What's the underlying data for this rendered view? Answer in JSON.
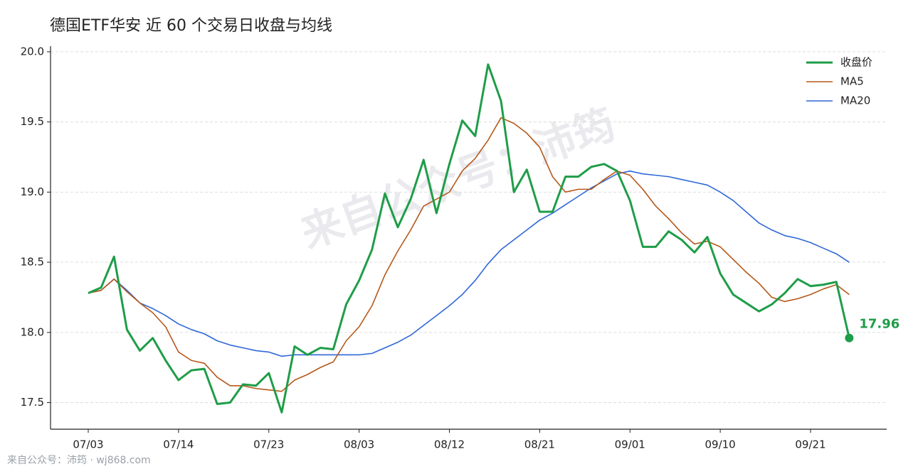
{
  "chart_data": {
    "type": "line",
    "title": "德国ETF华安 近 60 个交易日收盘与均线",
    "watermark": "来自公众号：沛筠",
    "footer": "来自公众号：沛筠 · wj868.com",
    "categories": [
      "07/03",
      null,
      null,
      null,
      null,
      null,
      null,
      "07/14",
      null,
      null,
      null,
      null,
      null,
      null,
      "07/23",
      null,
      null,
      null,
      null,
      null,
      null,
      "08/03",
      null,
      null,
      null,
      null,
      null,
      null,
      "08/12",
      null,
      null,
      null,
      null,
      null,
      null,
      "08/21",
      null,
      null,
      null,
      null,
      null,
      null,
      "09/01",
      null,
      null,
      null,
      null,
      null,
      null,
      "09/10",
      null,
      null,
      null,
      null,
      null,
      null,
      "09/21",
      null,
      null,
      null
    ],
    "series": [
      {
        "name": "收盘价",
        "color": "#1f9d48",
        "width": 3,
        "values": [
          18.28,
          18.32,
          18.54,
          18.02,
          17.87,
          17.96,
          17.8,
          17.66,
          17.73,
          17.74,
          17.49,
          17.5,
          17.63,
          17.62,
          17.71,
          17.43,
          17.9,
          17.84,
          17.89,
          17.88,
          18.2,
          18.37,
          18.59,
          18.99,
          18.75,
          18.95,
          19.23,
          18.85,
          19.2,
          19.51,
          19.4,
          19.91,
          19.65,
          19.0,
          19.16,
          18.86,
          18.86,
          19.11,
          19.11,
          19.18,
          19.2,
          19.15,
          18.94,
          18.61,
          18.61,
          18.72,
          18.66,
          18.57,
          18.68,
          18.42,
          18.27,
          18.21,
          18.15,
          18.2,
          18.28,
          18.38,
          18.33,
          18.34,
          18.36,
          17.96
        ]
      },
      {
        "name": "MA5",
        "color": "#b5581a",
        "width": 1.6,
        "values": [
          18.28,
          18.3,
          18.38,
          18.29,
          18.21,
          18.14,
          18.04,
          17.86,
          17.8,
          17.78,
          17.68,
          17.62,
          17.62,
          17.6,
          17.59,
          17.58,
          17.66,
          17.7,
          17.75,
          17.79,
          17.94,
          18.04,
          18.19,
          18.41,
          18.58,
          18.73,
          18.9,
          18.95,
          19.0,
          19.15,
          19.24,
          19.37,
          19.53,
          19.49,
          19.42,
          19.32,
          19.11,
          19.0,
          19.02,
          19.02,
          19.09,
          19.15,
          19.12,
          19.02,
          18.9,
          18.81,
          18.71,
          18.63,
          18.65,
          18.61,
          18.52,
          18.43,
          18.35,
          18.25,
          18.22,
          18.24,
          18.27,
          18.31,
          18.34,
          18.27
        ]
      },
      {
        "name": "MA20",
        "color": "#2f68d8",
        "width": 1.6,
        "values": [
          18.28,
          18.3,
          18.38,
          18.3,
          18.21,
          18.17,
          18.12,
          18.06,
          18.02,
          17.99,
          17.94,
          17.91,
          17.89,
          17.87,
          17.86,
          17.83,
          17.84,
          17.84,
          17.84,
          17.84,
          17.84,
          17.84,
          17.85,
          17.89,
          17.93,
          17.98,
          18.05,
          18.12,
          18.19,
          18.27,
          18.37,
          18.49,
          18.59,
          18.66,
          18.73,
          18.8,
          18.85,
          18.91,
          18.97,
          19.03,
          19.08,
          19.13,
          19.15,
          19.13,
          19.12,
          19.11,
          19.09,
          19.07,
          19.05,
          19.0,
          18.94,
          18.86,
          18.78,
          18.73,
          18.69,
          18.67,
          18.64,
          18.6,
          18.56,
          18.5
        ]
      }
    ],
    "ylim": [
      17.31,
      20.04
    ],
    "yticks": [
      {
        "value": 17.5,
        "label": "17.5"
      },
      {
        "value": 18,
        "label": "18.0"
      },
      18.5,
      {
        "value": 19,
        "label": "19.0"
      },
      19.5,
      {
        "value": 20,
        "label": "20.0"
      }
    ],
    "grid": true,
    "legend": "upper right"
  }
}
